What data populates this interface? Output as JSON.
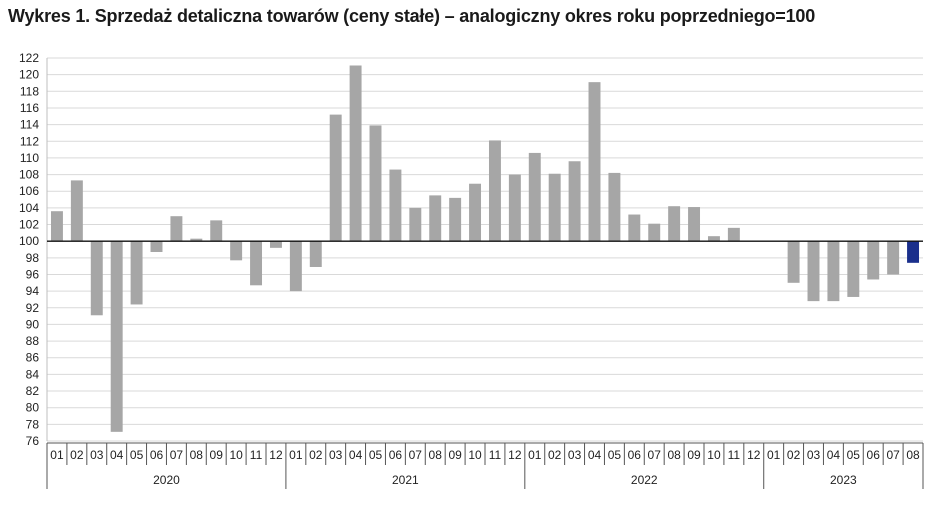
{
  "title": "Wykres 1. Sprzedaż detaliczna towarów (ceny stałe) – analogiczny okres roku poprzedniego=100",
  "colors": {
    "bar": "#a6a6a6",
    "highlight": "#1a2f8c",
    "grid": "#d9d9d9"
  },
  "chart_data": {
    "type": "bar",
    "baseline": 100,
    "ylim": [
      76,
      122
    ],
    "yticks": [
      76,
      78,
      80,
      82,
      84,
      86,
      88,
      90,
      92,
      94,
      96,
      98,
      100,
      102,
      104,
      106,
      108,
      110,
      112,
      114,
      116,
      118,
      120,
      122
    ],
    "grid": true,
    "month_labels": [
      "01",
      "02",
      "03",
      "04",
      "05",
      "06",
      "07",
      "08",
      "09",
      "10",
      "11",
      "12"
    ],
    "years": [
      {
        "year": "2020",
        "values": [
          103.6,
          107.3,
          91.1,
          77.1,
          92.4,
          98.7,
          103.0,
          100.3,
          102.5,
          97.7,
          94.7,
          99.2
        ]
      },
      {
        "year": "2021",
        "values": [
          94.0,
          96.9,
          115.2,
          121.1,
          113.9,
          108.6,
          104.0,
          105.5,
          105.2,
          106.9,
          112.1,
          108.0
        ]
      },
      {
        "year": "2022",
        "values": [
          110.6,
          108.1,
          109.6,
          119.1,
          108.2,
          103.2,
          102.1,
          104.2,
          104.1,
          100.6,
          101.6,
          100.0
        ]
      },
      {
        "year": "2023",
        "values": [
          100.0,
          95.0,
          92.8,
          92.8,
          93.3,
          95.4,
          96.0,
          97.4
        ]
      }
    ],
    "highlight": {
      "year": "2023",
      "month": "08"
    }
  }
}
